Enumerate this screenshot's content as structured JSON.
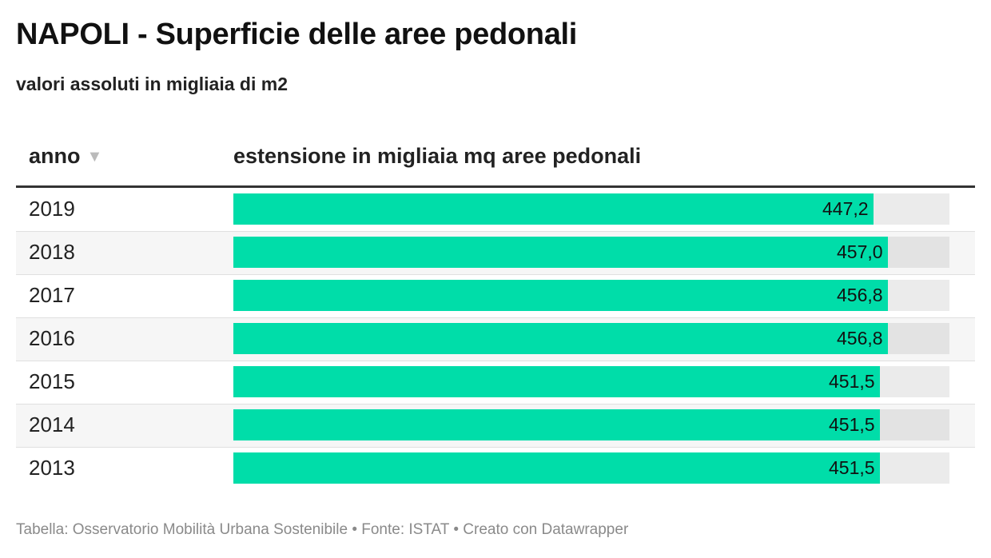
{
  "header": {
    "title": "NAPOLI - Superficie delle aree pedonali",
    "subtitle": "valori assoluti in migliaia di m2"
  },
  "table": {
    "col_year": "anno",
    "col_value": "estensione in migliaia mq aree pedonali",
    "sort_icon": "triangle-down"
  },
  "chart_data": {
    "type": "bar",
    "orientation": "horizontal",
    "categories": [
      "2019",
      "2018",
      "2017",
      "2016",
      "2015",
      "2014",
      "2013"
    ],
    "values": [
      447.2,
      457.0,
      456.8,
      456.8,
      451.5,
      451.5,
      451.5
    ],
    "value_labels": [
      "447,2",
      "457,0",
      "456,8",
      "456,8",
      "451,5",
      "451,5",
      "451,5"
    ],
    "xlim": [
      0,
      500
    ],
    "bar_color": "#00dda9",
    "track_color": "#ebebeb"
  },
  "footer": {
    "text": "Tabella: Osservatorio Mobilità Urbana Sostenibile • Fonte: ISTAT • Creato con Datawrapper"
  }
}
